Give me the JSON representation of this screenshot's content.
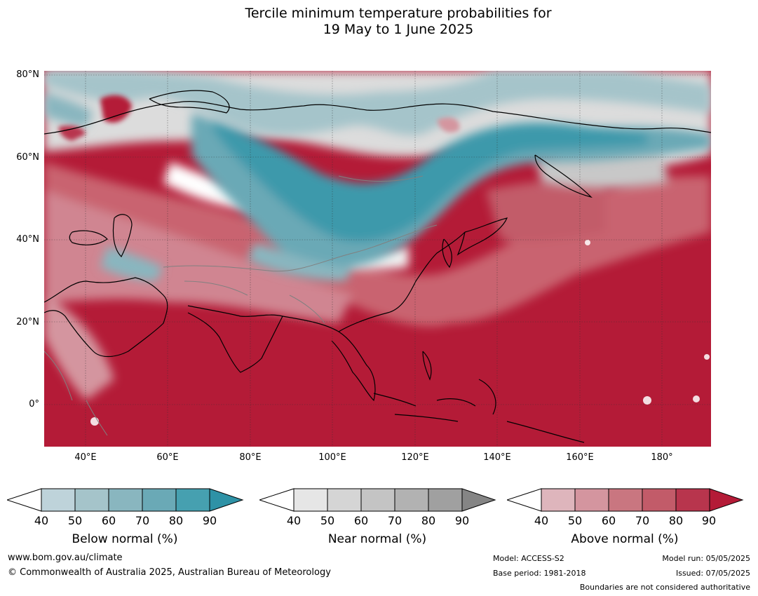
{
  "title_line1": "Tercile minimum temperature probabilities for",
  "title_line2": "19 May to 1 June 2025",
  "lat_labels": [
    "80°N",
    "60°N",
    "40°N",
    "20°N",
    "0°"
  ],
  "lon_labels": [
    "40°E",
    "60°E",
    "80°E",
    "100°E",
    "120°E",
    "140°E",
    "160°E",
    "180°"
  ],
  "map": {
    "lat_range": [
      -10,
      81
    ],
    "lon_range": [
      30,
      192
    ],
    "gridlines": true
  },
  "colorbars": [
    {
      "label": "Below normal (%)",
      "ticks": [
        "40",
        "50",
        "60",
        "70",
        "80",
        "90"
      ],
      "colors": [
        "#ffffff",
        "#bed3da",
        "#a5c4ca",
        "#89b6bf",
        "#6aa9b6",
        "#46a0b0",
        "#2e92a6"
      ]
    },
    {
      "label": "Near normal (%)",
      "ticks": [
        "40",
        "50",
        "60",
        "70",
        "80",
        "90"
      ],
      "colors": [
        "#ffffff",
        "#e6e6e6",
        "#d5d5d5",
        "#c4c4c4",
        "#b2b2b2",
        "#a0a0a0",
        "#858585"
      ]
    },
    {
      "label": "Above normal (%)",
      "ticks": [
        "40",
        "50",
        "60",
        "70",
        "80",
        "90"
      ],
      "colors": [
        "#ffffff",
        "#deb5bc",
        "#d4959f",
        "#c97680",
        "#c25b69",
        "#b8354d",
        "#b41b37"
      ]
    }
  ],
  "footer": {
    "website": "www.bom.gov.au/climate",
    "copyright": "© Commonwealth of Australia 2025, Australian Bureau of Meteorology",
    "model": "Model: ACCESS-S2",
    "base_period": "Base period: 1981-2018",
    "model_run": "Model run: 05/05/2025",
    "issued": "Issued: 07/05/2025",
    "disclaimer": "Boundaries are not considered authoritative"
  }
}
